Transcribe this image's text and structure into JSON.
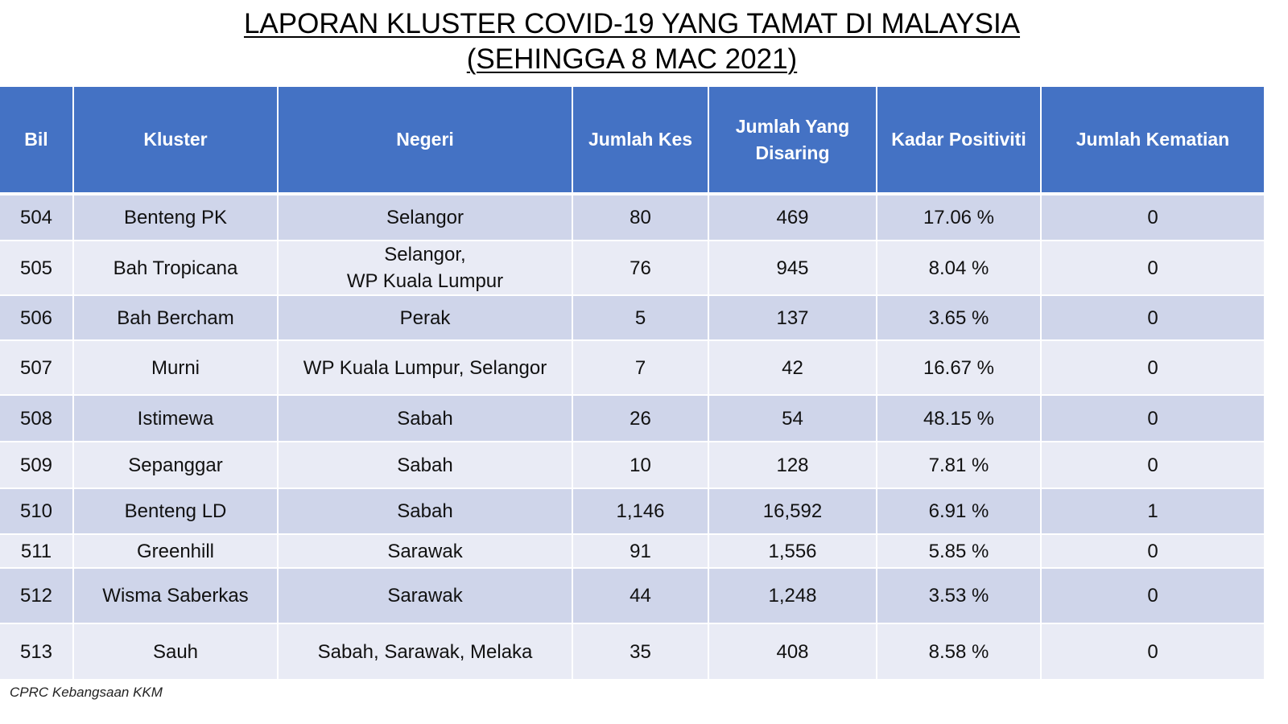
{
  "title": {
    "line1": "LAPORAN KLUSTER COVID-19 YANG TAMAT DI MALAYSIA",
    "line2": "(SEHINGGA 8 MAC 2021)"
  },
  "table": {
    "headers": {
      "bil": "Bil",
      "kluster": "Kluster",
      "negeri": "Negeri",
      "jumlah_kes": "Jumlah Kes",
      "jumlah_disaring_1": "Jumlah Yang",
      "jumlah_disaring_2": "Disaring",
      "kadar_positiviti": "Kadar Positiviti",
      "jumlah_kematian": "Jumlah Kematian"
    },
    "rows": [
      {
        "bil": "504",
        "kluster": "Benteng PK",
        "negeri_1": "Selangor",
        "negeri_2": "",
        "kes": "80",
        "disaring": "469",
        "positiviti": "17.06 %",
        "kematian": "0"
      },
      {
        "bil": "505",
        "kluster": "Bah Tropicana",
        "negeri_1": "Selangor,",
        "negeri_2": "WP Kuala Lumpur",
        "kes": "76",
        "disaring": "945",
        "positiviti": "8.04 %",
        "kematian": "0"
      },
      {
        "bil": "506",
        "kluster": "Bah Bercham",
        "negeri_1": "Perak",
        "negeri_2": "",
        "kes": "5",
        "disaring": "137",
        "positiviti": "3.65 %",
        "kematian": "0"
      },
      {
        "bil": "507",
        "kluster": "Murni",
        "negeri_1": "WP Kuala Lumpur, Selangor",
        "negeri_2": "",
        "kes": "7",
        "disaring": "42",
        "positiviti": "16.67 %",
        "kematian": "0"
      },
      {
        "bil": "508",
        "kluster": "Istimewa",
        "negeri_1": "Sabah",
        "negeri_2": "",
        "kes": "26",
        "disaring": "54",
        "positiviti": "48.15 %",
        "kematian": "0"
      },
      {
        "bil": "509",
        "kluster": "Sepanggar",
        "negeri_1": "Sabah",
        "negeri_2": "",
        "kes": "10",
        "disaring": "128",
        "positiviti": "7.81 %",
        "kematian": "0"
      },
      {
        "bil": "510",
        "kluster": "Benteng LD",
        "negeri_1": "Sabah",
        "negeri_2": "",
        "kes": "1,146",
        "disaring": "16,592",
        "positiviti": "6.91 %",
        "kematian": "1"
      },
      {
        "bil": "511",
        "kluster": "Greenhill",
        "negeri_1": "Sarawak",
        "negeri_2": "",
        "kes": "91",
        "disaring": "1,556",
        "positiviti": "5.85 %",
        "kematian": "0"
      },
      {
        "bil": "512",
        "kluster": "Wisma Saberkas",
        "negeri_1": "Sarawak",
        "negeri_2": "",
        "kes": "44",
        "disaring": "1,248",
        "positiviti": "3.53 %",
        "kematian": "0"
      },
      {
        "bil": "513",
        "kluster": "Sauh",
        "negeri_1": "Sabah, Sarawak, Melaka",
        "negeri_2": "",
        "kes": "35",
        "disaring": "408",
        "positiviti": "8.58 %",
        "kematian": "0"
      }
    ]
  },
  "footer": "CPRC Kebangsaan KKM",
  "colors": {
    "header_bg": "#4472c4",
    "row_dark": "#cfd5ea",
    "row_light": "#e9ebf5"
  }
}
